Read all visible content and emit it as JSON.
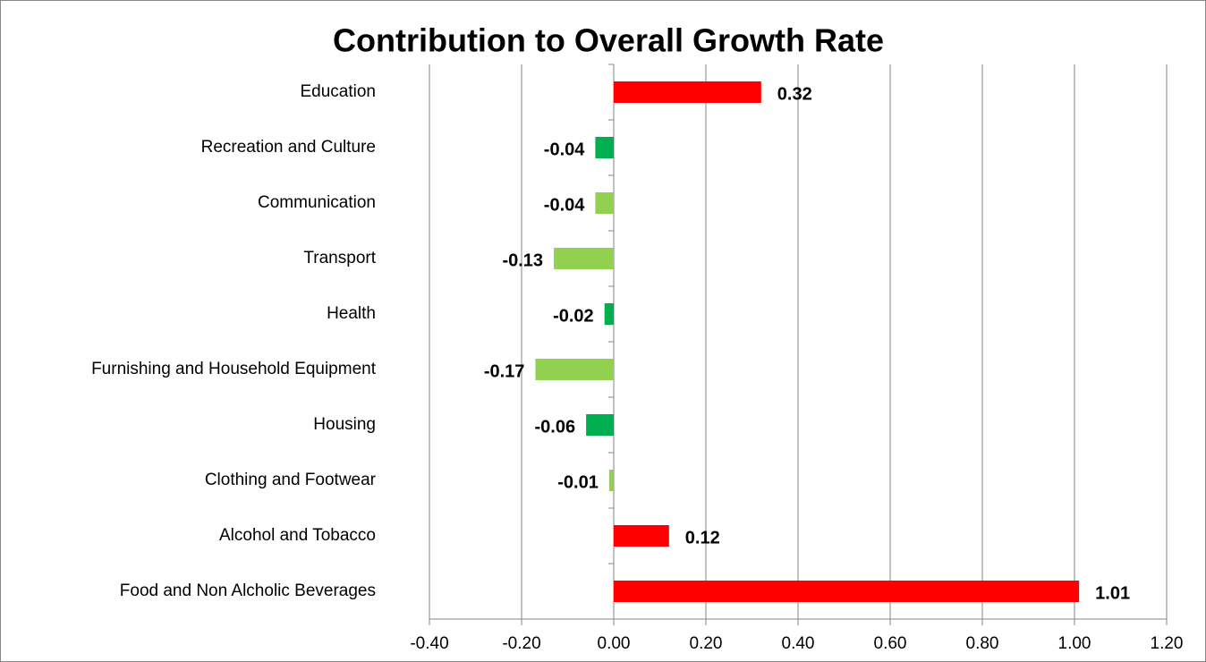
{
  "chart_data": {
    "type": "barh",
    "title": "Contribution to Overall Growth Rate",
    "categories": [
      "Education",
      "Recreation and Culture",
      "Communication",
      "Transport",
      "Health",
      "Furnishing and Household Equipment",
      "Housing",
      "Clothing and Footwear",
      "Alcohol and Tobacco",
      "Food and Non Alcholic Beverages"
    ],
    "values": [
      0.32,
      -0.04,
      -0.04,
      -0.13,
      -0.02,
      -0.17,
      -0.06,
      -0.01,
      0.12,
      1.01
    ],
    "colors": [
      "#ff0000",
      "#00b050",
      "#92d050",
      "#92d050",
      "#00b050",
      "#92d050",
      "#00b050",
      "#92d050",
      "#ff0000",
      "#ff0000"
    ],
    "xlim": [
      -0.4,
      1.2
    ],
    "xticks": [
      {
        "value": -0.4,
        "label": "-0.40"
      },
      {
        "value": -0.2,
        "label": "-0.20"
      },
      {
        "value": 0,
        "label": "0.00"
      },
      {
        "value": 0.2,
        "label": "0.20"
      },
      {
        "value": 0.4,
        "label": "0.40"
      },
      {
        "value": 0.6,
        "label": "0.60"
      },
      {
        "value": 0.8,
        "label": "0.80"
      },
      {
        "value": 1,
        "label": "1.00"
      },
      {
        "value": 1.2,
        "label": "1.20"
      }
    ],
    "grid": true
  }
}
